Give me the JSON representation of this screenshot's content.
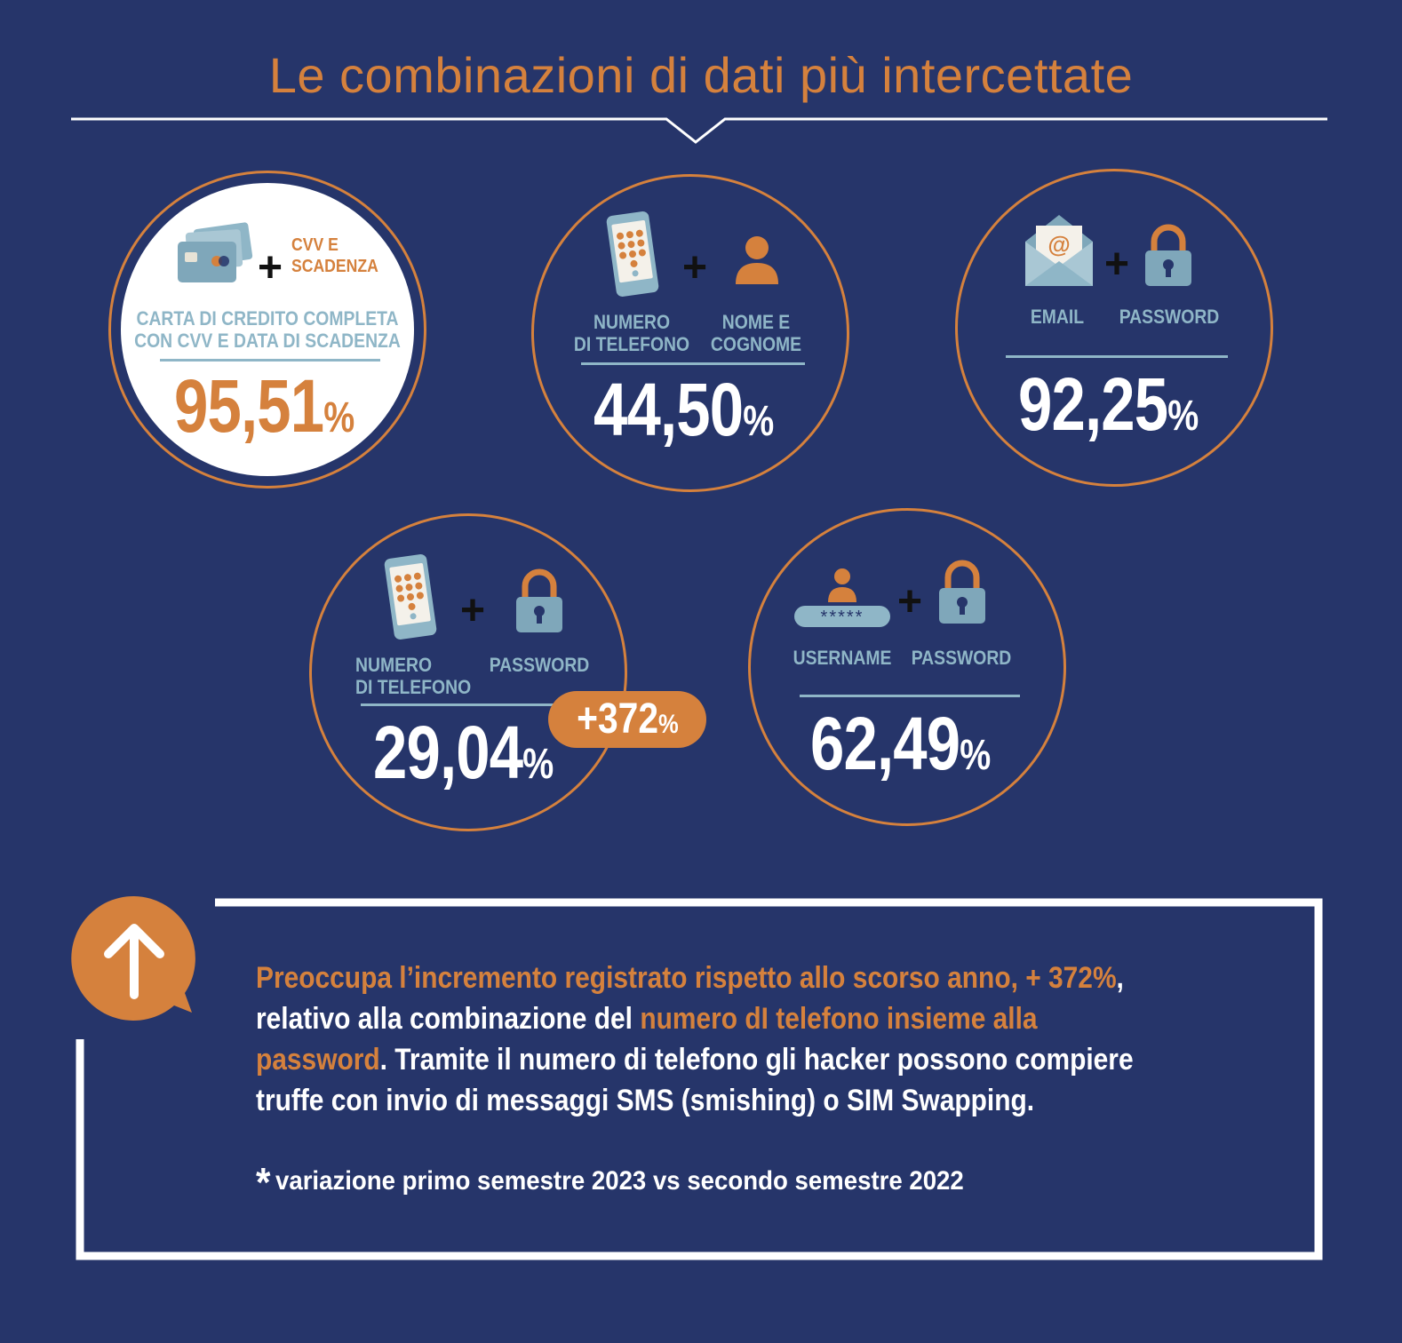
{
  "title": "Le combinazioni di dati più intercettate",
  "colors": {
    "background": "#26356a",
    "accent": "#d5813d",
    "label": "#8fb6c7",
    "text": "#ffffff"
  },
  "cards": [
    {
      "id": "credit-card",
      "icons": [
        "credit-card-icon"
      ],
      "side_label": "CVV E\nSCADENZA",
      "label": "CARTA DI CREDITO COMPLETA\nCON CVV E DATA DI SCADENZA",
      "value": "95,51",
      "unit": "%"
    },
    {
      "id": "phone-name",
      "icons": [
        "phone-icon",
        "person-icon"
      ],
      "label_left": "NUMERO\nDI TELEFONO",
      "label_right": "NOME E\nCOGNOME",
      "value": "44,50",
      "unit": "%"
    },
    {
      "id": "email-password",
      "icons": [
        "email-icon",
        "padlock-icon"
      ],
      "label_left": "EMAIL",
      "label_right": "PASSWORD",
      "value": "92,25",
      "unit": "%"
    },
    {
      "id": "phone-password",
      "icons": [
        "phone-icon",
        "padlock-icon"
      ],
      "label_left": "NUMERO\nDI TELEFONO",
      "label_right": "PASSWORD",
      "value": "29,04",
      "unit": "%",
      "badge": {
        "value": "+372",
        "unit": "%"
      }
    },
    {
      "id": "username-password",
      "icons": [
        "username-icon",
        "padlock-icon"
      ],
      "masked": "*****",
      "label_left": "USERNAME",
      "label_right": "PASSWORD",
      "value": "62,49",
      "unit": "%"
    }
  ],
  "plus_sign": "+",
  "note": {
    "icon": "arrow-up-icon",
    "part1": "Preoccupa l’incremento registrato rispetto allo scorso anno, + 372%",
    "part2": ",",
    "part3": " relativo alla combinazione del ",
    "part4": "numero dI telefono insieme alla password",
    "part5": ". Tramite il numero di telefono gli hacker possono compiere truffe con invio di messaggi SMS (smishing) o SIM Swapping."
  },
  "footnote": {
    "marker": "*",
    "text": "variazione primo semestre 2023 vs secondo semestre 2022"
  }
}
